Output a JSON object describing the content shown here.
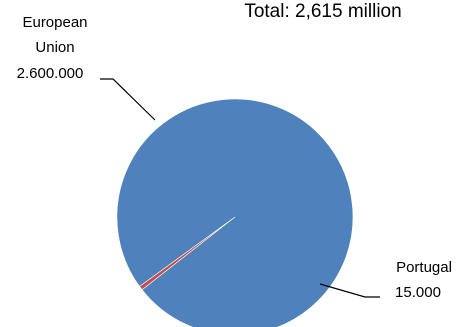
{
  "chart_data": {
    "type": "pie",
    "title": "Total: 2,615 million",
    "slices": [
      {
        "label_lines": [
          "European",
          "Union"
        ],
        "value_text": "2.600.000",
        "value": 2600000,
        "color": "#4F81BD"
      },
      {
        "label_lines": [
          "Portugal"
        ],
        "value_text": "15.000",
        "value": 15000,
        "color": "#C0504D"
      }
    ],
    "legend": "none"
  }
}
